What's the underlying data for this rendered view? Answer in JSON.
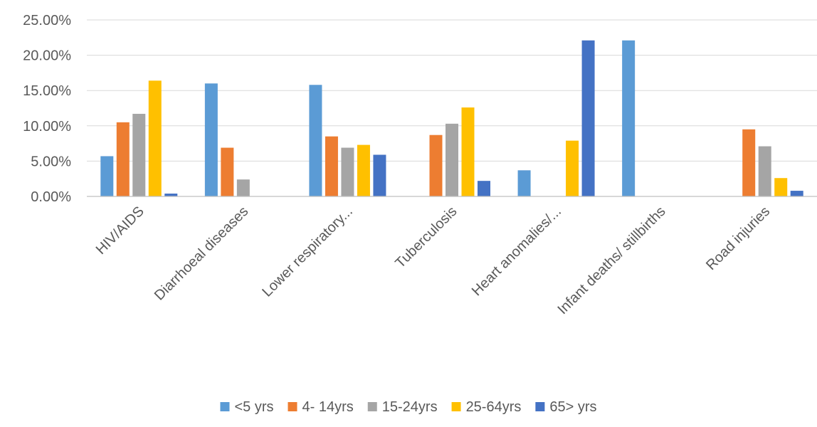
{
  "chart_data": {
    "type": "bar",
    "title": "",
    "xlabel": "",
    "ylabel": "",
    "ylim": [
      0,
      0.25
    ],
    "grid": true,
    "legend_position": "bottom",
    "y_tick_values": [
      0,
      0.05,
      0.1,
      0.15,
      0.2,
      0.25
    ],
    "y_tick_labels": [
      "0.00%",
      "5.00%",
      "10.00%",
      "15.00%",
      "20.00%",
      "25.00%"
    ],
    "categories": [
      "HIV/AIDS",
      "Diarrhoeal diseases",
      "Lower respiratory...",
      "Tuberculosis",
      "Heart anomalies/...",
      "Infant deaths/ stillbirths",
      "Road injuries"
    ],
    "series": [
      {
        "name": "<5 yrs",
        "color": "#5B9BD5",
        "values": [
          0.057,
          0.16,
          0.158,
          0,
          0.037,
          0.221,
          0
        ]
      },
      {
        "name": "4- 14yrs",
        "color": "#ED7D31",
        "values": [
          0.105,
          0.069,
          0.085,
          0.087,
          0,
          0,
          0.095
        ]
      },
      {
        "name": "15-24yrs",
        "color": "#A5A5A5",
        "values": [
          0.117,
          0.024,
          0.069,
          0.103,
          0,
          0,
          0.071
        ]
      },
      {
        "name": "25-64yrs",
        "color": "#FFC000",
        "values": [
          0.164,
          0,
          0.073,
          0.126,
          0.079,
          0,
          0.026
        ]
      },
      {
        "name": "65> yrs",
        "color": "#4472C4",
        "values": [
          0.004,
          0,
          0.059,
          0.022,
          0.221,
          0,
          0.008
        ]
      }
    ]
  }
}
